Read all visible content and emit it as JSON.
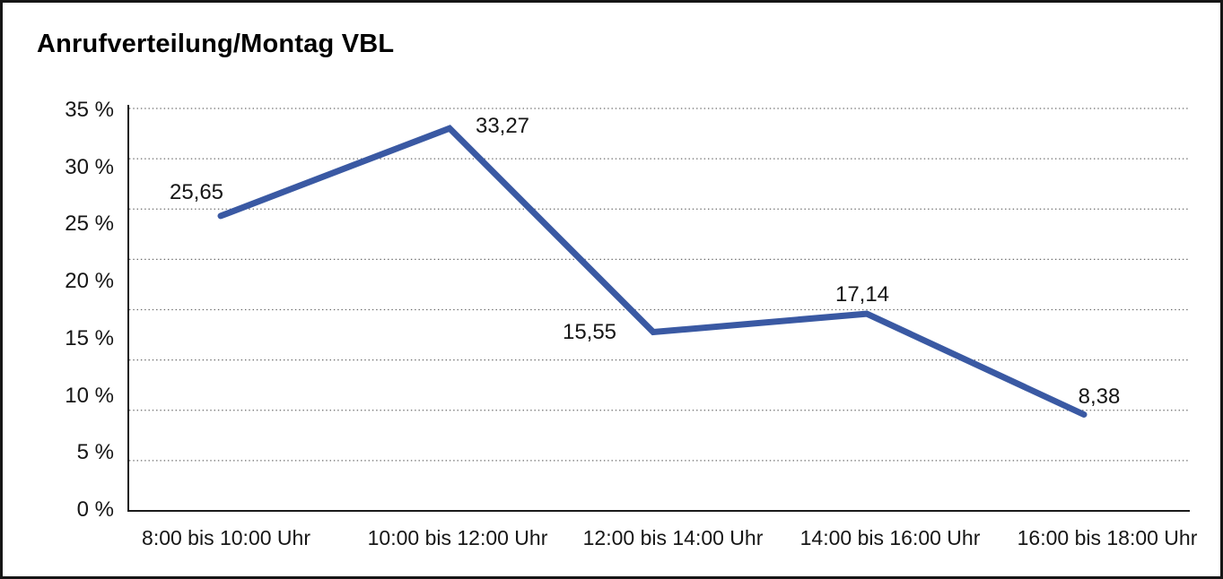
{
  "window": {
    "background": "#ffffff",
    "border_color": "#161616"
  },
  "chart_data": {
    "type": "line",
    "title": "Anrufverteilung/Montag VBL",
    "categories": [
      "8:00 bis 10:00 Uhr",
      "10:00 bis 12:00 Uhr",
      "12:00 bis 14:00 Uhr",
      "14:00 bis 16:00 Uhr",
      "16:00 bis 18:00 Uhr"
    ],
    "series": [
      {
        "values": [
          25.65,
          33.27,
          15.55,
          17.14,
          8.38
        ],
        "data_labels": [
          "25,65",
          "33,27",
          "15,55",
          "17,14",
          "8,38"
        ],
        "color": "#3a59a3"
      }
    ],
    "xlabel": "",
    "ylabel": "",
    "y_axis": {
      "unit": "%",
      "min": 0,
      "max": 35,
      "step": 5,
      "tick_labels": [
        "35 %",
        "30 %",
        "25 %",
        "20 %",
        "15 %",
        "10 %",
        "5 %",
        "0 %"
      ]
    },
    "grid": "horizontal dotted",
    "legend_position": "none",
    "axis_color": "#1a1a1a",
    "gridline_color": "#6b6b6b"
  }
}
